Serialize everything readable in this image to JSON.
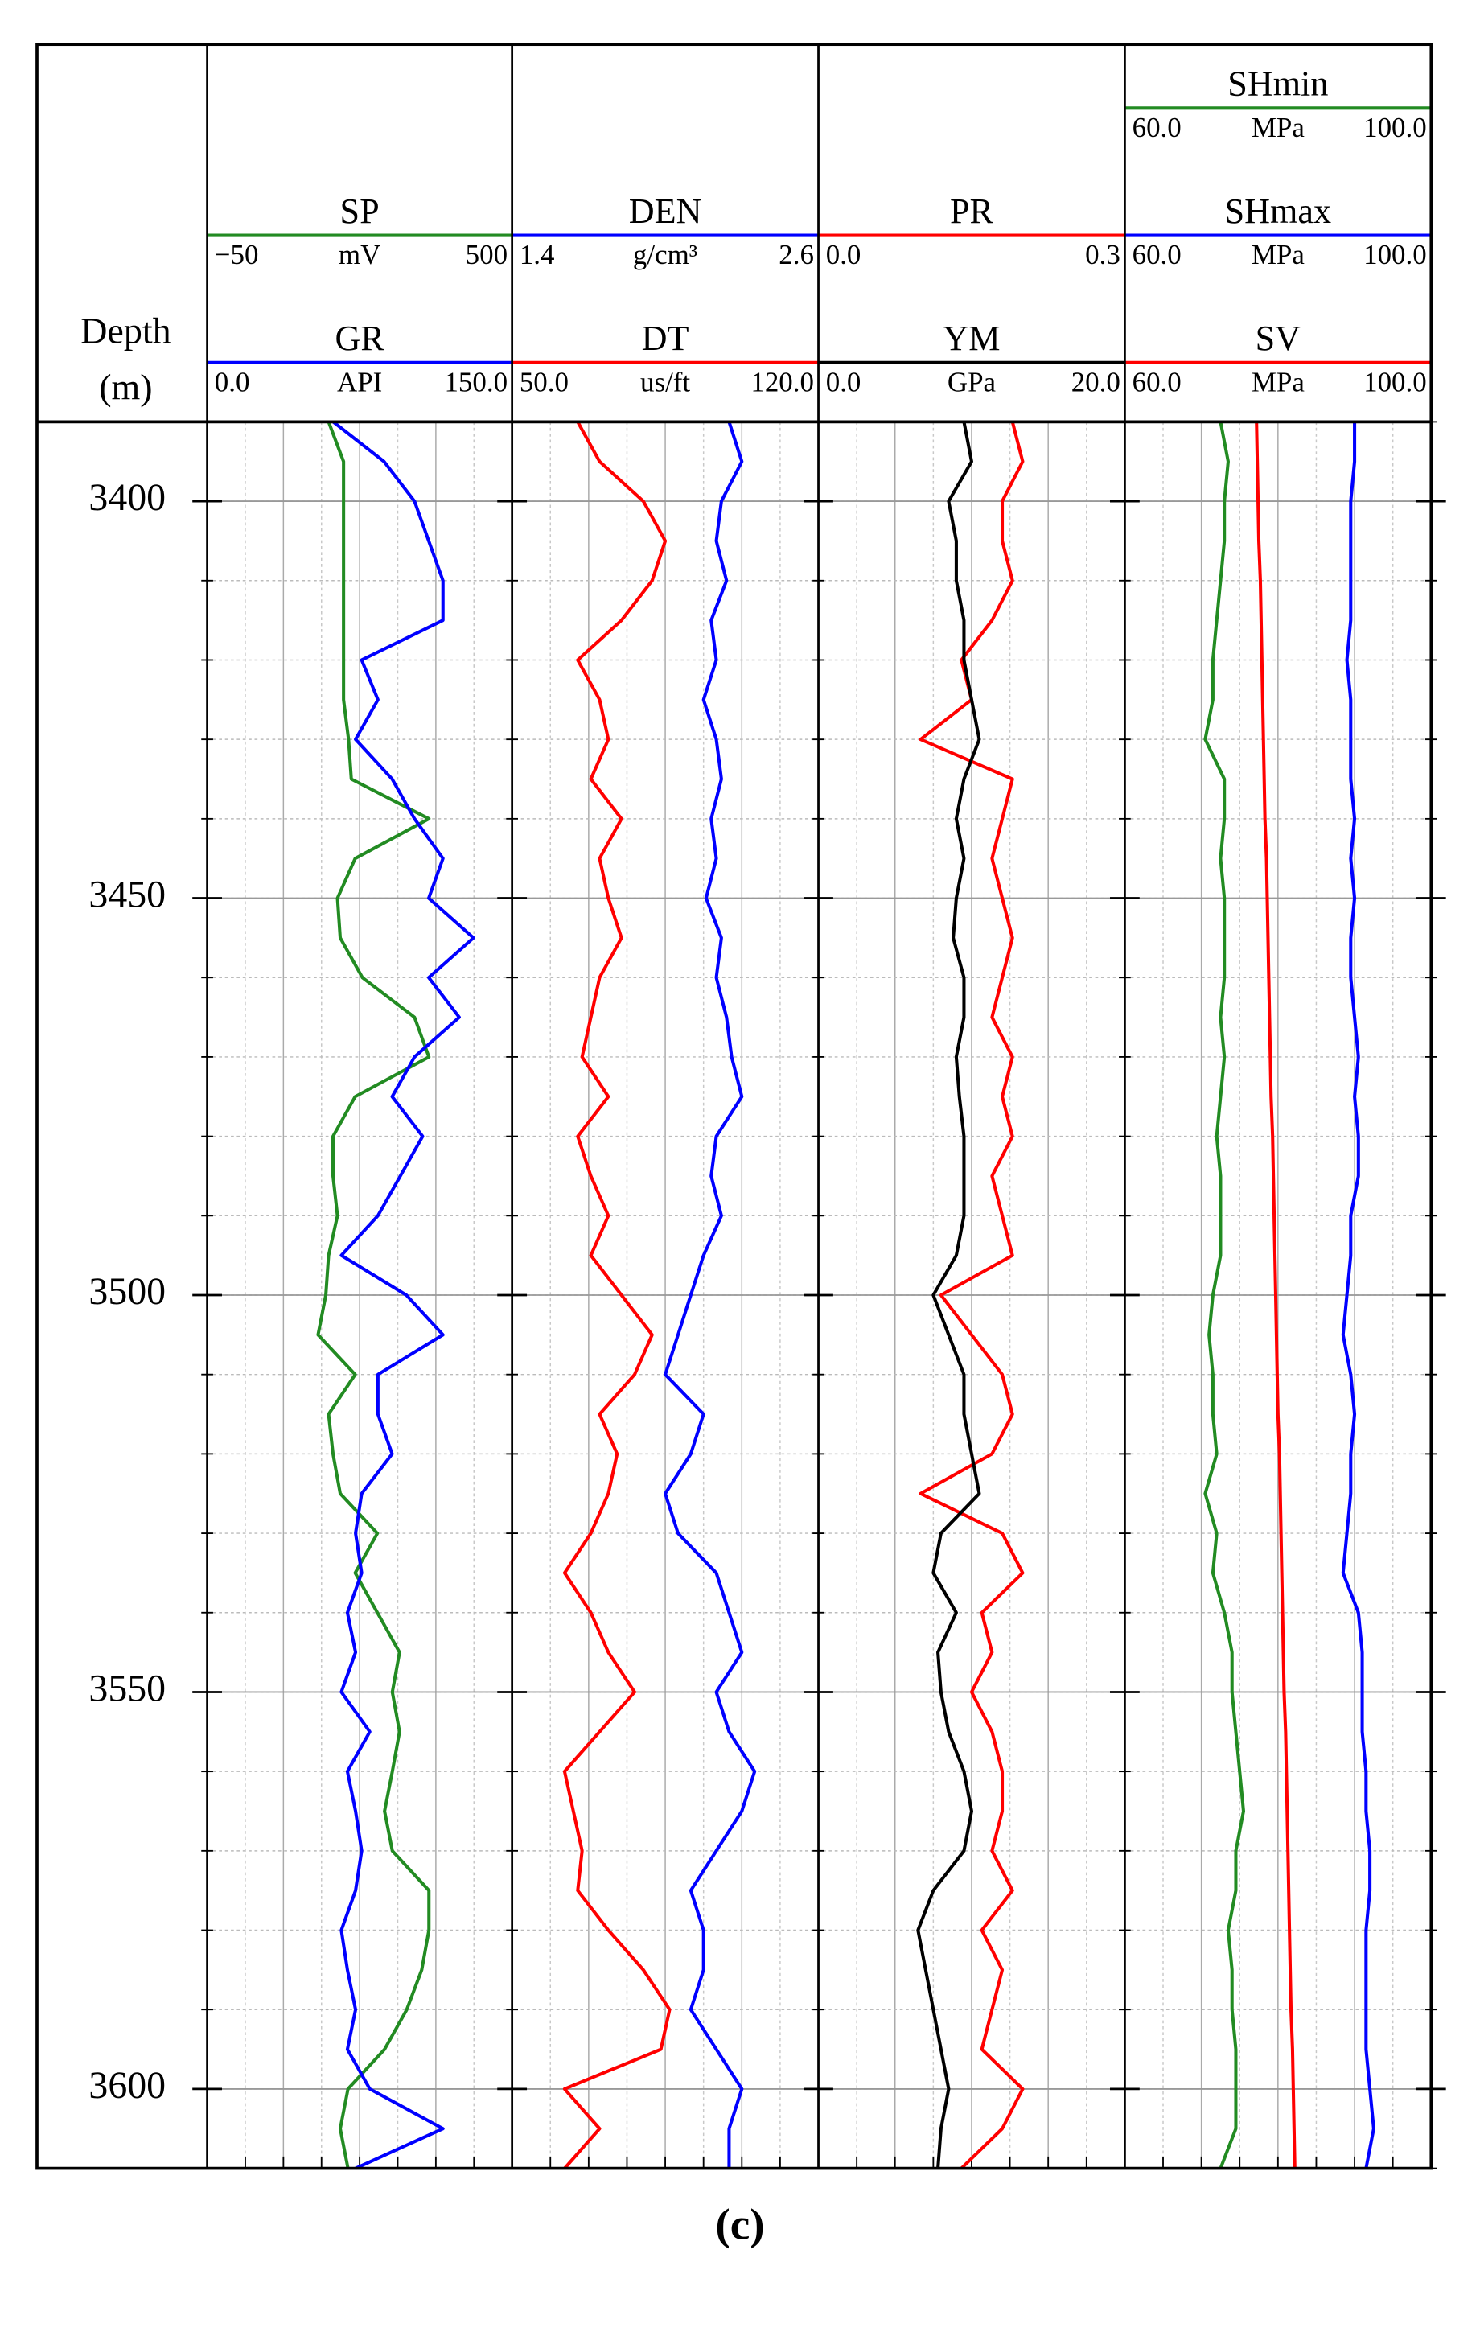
{
  "chart_data": {
    "type": "well-log",
    "ylabel": [
      "Depth",
      "(m)"
    ],
    "caption": "(c)",
    "ylim": [
      3390,
      3610
    ],
    "yticks": [
      3400,
      3450,
      3500,
      3550,
      3600
    ],
    "minor_yticks": [
      3390,
      3400,
      3410,
      3420,
      3430,
      3440,
      3450,
      3460,
      3470,
      3480,
      3490,
      3500,
      3510,
      3520,
      3530,
      3540,
      3550,
      3560,
      3570,
      3580,
      3590,
      3600,
      3610
    ],
    "depth": [
      3390,
      3395,
      3400,
      3405,
      3410,
      3415,
      3420,
      3425,
      3430,
      3435,
      3440,
      3445,
      3450,
      3455,
      3460,
      3465,
      3470,
      3475,
      3480,
      3485,
      3490,
      3495,
      3500,
      3505,
      3510,
      3515,
      3520,
      3525,
      3530,
      3535,
      3540,
      3545,
      3550,
      3555,
      3560,
      3565,
      3570,
      3575,
      3580,
      3585,
      3590,
      3595,
      3600,
      3605,
      3610
    ],
    "tracks": [
      {
        "curves": [
          {
            "name": "SP",
            "color": "#228b22",
            "unit": "mV",
            "xlim": [
              -50,
              500
            ],
            "xticks": [
              {
                "value": -50,
                "label": "−50"
              },
              500
            ],
            "values": [
              169,
              196,
              196,
              196,
              196,
              196,
              196,
              196,
              205,
              210,
              350,
              217,
              185,
              190,
              230,
              324,
              350,
              217,
              177,
              177,
              185,
              169,
              164,
              150,
              217,
              169,
              177,
              190,
              257,
              217,
              257,
              297,
              284,
              297,
              284,
              270,
              284,
              350,
              350,
              337,
              310,
              270,
              204,
              190,
              204
            ]
          },
          {
            "name": "GR",
            "color": "#0000ff",
            "unit": "API",
            "xlim": [
              0,
              150
            ],
            "xticks": [
              {
                "value": 0,
                "label": "0.0"
              },
              {
                "value": 150,
                "label": "150.0"
              }
            ],
            "values": [
              62,
              87,
              102,
              109,
              116,
              116,
              76,
              84,
              73,
              91,
              102,
              116,
              109,
              131,
              109,
              124,
              102,
              91,
              106,
              95,
              84,
              66,
              98,
              116,
              84,
              84,
              91,
              76,
              73,
              76,
              69,
              73,
              66,
              80,
              69,
              73,
              76,
              73,
              66,
              69,
              73,
              69,
              80,
              116,
              73
            ]
          }
        ]
      },
      {
        "curves": [
          {
            "name": "DEN",
            "color": "#0000ff",
            "unit": "g/cm³",
            "xlim": [
              1.4,
              2.6
            ],
            "xticks": [
              1.4,
              2.6
            ],
            "values": [
              2.25,
              2.3,
              2.22,
              2.2,
              2.24,
              2.18,
              2.2,
              2.15,
              2.2,
              2.22,
              2.18,
              2.2,
              2.16,
              2.22,
              2.2,
              2.24,
              2.26,
              2.3,
              2.2,
              2.18,
              2.22,
              2.15,
              2.1,
              2.05,
              2.0,
              2.15,
              2.1,
              2.0,
              2.05,
              2.2,
              2.25,
              2.3,
              2.2,
              2.25,
              2.35,
              2.3,
              2.2,
              2.1,
              2.15,
              2.15,
              2.1,
              2.2,
              2.3,
              2.25,
              2.25
            ]
          },
          {
            "name": "DT",
            "color": "#ff0000",
            "unit": "us/ft",
            "xlim": [
              50,
              120
            ],
            "xticks": [
              {
                "value": 50,
                "label": "50.0"
              },
              {
                "value": 120,
                "label": "120.0"
              }
            ],
            "values": [
              65,
              70,
              80,
              85,
              82,
              75,
              65,
              70,
              72,
              68,
              75,
              70,
              72,
              75,
              70,
              68,
              66,
              72,
              65,
              68,
              72,
              68,
              75,
              82,
              78,
              70,
              74,
              72,
              68,
              62,
              68,
              72,
              78,
              70,
              62,
              64,
              66,
              65,
              72,
              80,
              86,
              84,
              62,
              70,
              62
            ]
          }
        ]
      },
      {
        "curves": [
          {
            "name": "PR",
            "color": "#ff0000",
            "xlim": [
              0,
              0.3
            ],
            "xticks": [
              {
                "value": 0,
                "label": "0.0"
              },
              0.3
            ],
            "values": [
              0.19,
              0.2,
              0.18,
              0.18,
              0.19,
              0.17,
              0.14,
              0.15,
              0.1,
              0.19,
              0.18,
              0.17,
              0.18,
              0.19,
              0.18,
              0.17,
              0.19,
              0.18,
              0.19,
              0.17,
              0.18,
              0.19,
              0.12,
              0.15,
              0.18,
              0.19,
              0.17,
              0.1,
              0.18,
              0.2,
              0.16,
              0.17,
              0.15,
              0.17,
              0.18,
              0.18,
              0.17,
              0.19,
              0.16,
              0.18,
              0.17,
              0.16,
              0.2,
              0.18,
              0.14
            ]
          },
          {
            "name": "YM",
            "color": "#000000",
            "unit": "GPa",
            "xlim": [
              0,
              20
            ],
            "xticks": [
              {
                "value": 0,
                "label": "0.0"
              },
              {
                "value": 20,
                "label": "20.0"
              }
            ],
            "values": [
              9.5,
              10,
              8.5,
              9,
              9,
              9.5,
              9.5,
              10,
              10.5,
              9.5,
              9,
              9.5,
              9,
              8.8,
              9.5,
              9.5,
              9,
              9.2,
              9.5,
              9.5,
              9.5,
              9,
              7.5,
              8.5,
              9.5,
              9.5,
              10,
              10.5,
              8,
              7.5,
              9,
              7.8,
              8,
              8.5,
              9.5,
              10,
              9.5,
              7.5,
              6.5,
              7,
              7.5,
              8,
              8.5,
              8,
              7.8
            ]
          }
        ]
      },
      {
        "curves": [
          {
            "name": "SHmin",
            "color": "#228b22",
            "unit": "MPa",
            "xlim": [
              60,
              100
            ],
            "xticks": [
              {
                "value": 60,
                "label": "60.0"
              },
              {
                "value": 100,
                "label": "100.0"
              }
            ],
            "values": [
              72.5,
              73.5,
              73,
              73,
              72.5,
              72,
              71.5,
              71.5,
              70.5,
              73,
              73,
              72.5,
              73,
              73,
              73,
              72.5,
              73,
              72.5,
              72,
              72.5,
              72.5,
              72.5,
              71.5,
              71,
              71.5,
              71.5,
              72,
              70.5,
              72,
              71.5,
              73,
              74,
              74,
              74.5,
              75,
              75.5,
              74.5,
              74.5,
              73.5,
              74,
              74,
              74.5,
              74.5,
              74.5,
              72.5
            ]
          },
          {
            "name": "SHmax",
            "color": "#0000ff",
            "unit": "MPa",
            "xlim": [
              60,
              100
            ],
            "xticks": [
              {
                "value": 60,
                "label": "60.0"
              },
              {
                "value": 100,
                "label": "100.0"
              }
            ],
            "values": [
              90,
              90,
              89.5,
              89.5,
              89.5,
              89.5,
              89,
              89.5,
              89.5,
              89.5,
              90,
              89.5,
              90,
              89.5,
              89.5,
              90,
              90.5,
              90,
              90.5,
              90.5,
              89.5,
              89.5,
              89,
              88.5,
              89.5,
              90,
              89.5,
              89.5,
              89,
              88.5,
              90.5,
              91,
              91,
              91,
              91.5,
              91.5,
              92,
              92,
              91.5,
              91.5,
              91.5,
              91.5,
              92,
              92.5,
              91.5
            ]
          },
          {
            "name": "SV",
            "color": "#ff0000",
            "unit": "MPa",
            "xlim": [
              60,
              100
            ],
            "xticks": [
              {
                "value": 60,
                "label": "60.0"
              },
              {
                "value": 100,
                "label": "100.0"
              }
            ],
            "values": [
              77.2,
              77.3,
              77.4,
              77.5,
              77.7,
              77.8,
              77.9,
              78.0,
              78.1,
              78.2,
              78.3,
              78.5,
              78.6,
              78.7,
              78.8,
              78.9,
              79.0,
              79.1,
              79.3,
              79.4,
              79.5,
              79.6,
              79.7,
              79.8,
              79.9,
              80.0,
              80.2,
              80.3,
              80.4,
              80.5,
              80.6,
              80.7,
              80.8,
              81.0,
              81.1,
              81.2,
              81.3,
              81.4,
              81.5,
              81.6,
              81.7,
              81.9,
              82.0,
              82.1,
              82.2
            ]
          }
        ]
      }
    ]
  }
}
